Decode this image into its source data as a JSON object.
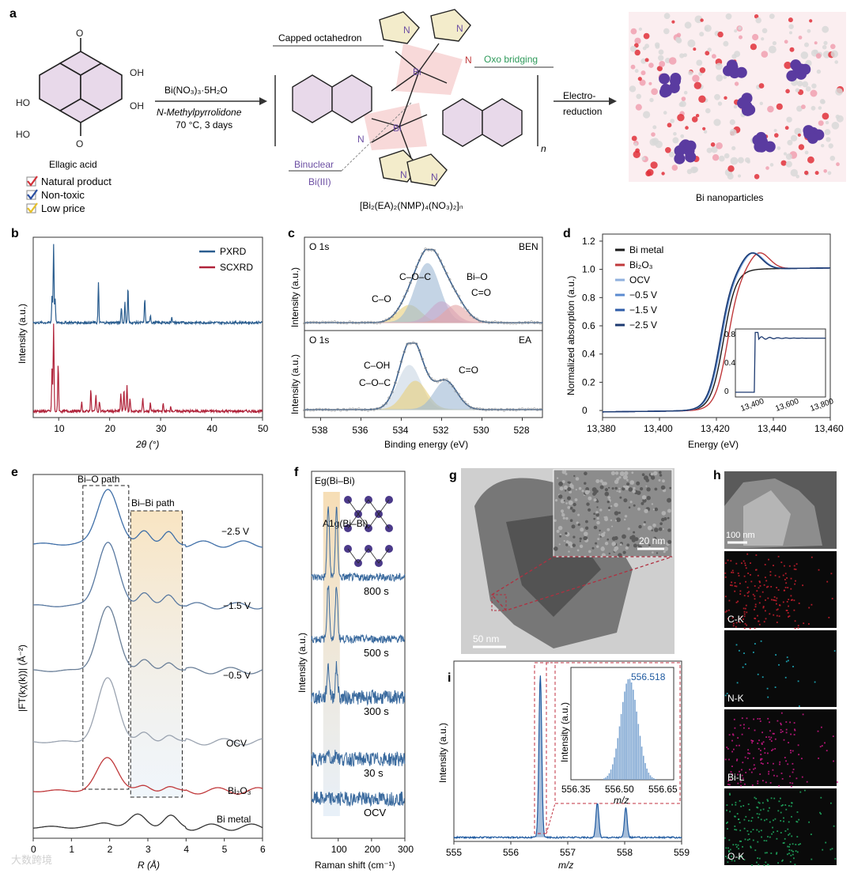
{
  "panel_labels": [
    "a",
    "b",
    "c",
    "d",
    "e",
    "f",
    "g",
    "h",
    "i"
  ],
  "panel_a": {
    "ellagic_acid": "Ellagic acid",
    "checklist": [
      "Natural product",
      "Non-toxic",
      "Low price"
    ],
    "check_colors": [
      "#d1323a",
      "#2a4fa2",
      "#e6c02a"
    ],
    "reagent": "Bi(NO₃)₃·5H₂O",
    "solvent": "N-Methylpyrrolidone",
    "conditions": "70 °C, 3 days",
    "capped_octahedron": "Capped octahedron",
    "oxo_bridging": "Oxo bridging",
    "binuclear": "Binuclear",
    "bi_iii": "Bi(III)",
    "formula": "[Bi₂(EA)₂(NMP)₄(NO₃)₂]ₙ",
    "electro_reduction": [
      "Electro-",
      "reduction"
    ],
    "bi_nanoparticles": "Bi nanoparticles"
  },
  "chart_data": [
    {
      "panel": "b",
      "type": "line",
      "xlabel": "2θ (°)",
      "ylabel": "Intensity (a.u.)",
      "xlim": [
        5,
        50
      ],
      "xticks": [
        "10",
        "20",
        "30",
        "40",
        "50"
      ],
      "series": [
        {
          "name": "PXRD",
          "color": "#2a5d8f",
          "peaks": [
            [
              8.7,
              0.35
            ],
            [
              9.0,
              1.0
            ],
            [
              9.3,
              0.3
            ],
            [
              17.8,
              0.5
            ],
            [
              22.3,
              0.2
            ],
            [
              23.0,
              0.25
            ],
            [
              23.6,
              0.45
            ],
            [
              26.9,
              0.3
            ],
            [
              28.0,
              0.1
            ],
            [
              32.2,
              0.08
            ]
          ]
        },
        {
          "name": "SCXRD",
          "color": "#b0233a",
          "peaks": [
            [
              8.7,
              0.5
            ],
            [
              9.0,
              1.0
            ],
            [
              9.9,
              0.55
            ],
            [
              14.5,
              0.1
            ],
            [
              16.3,
              0.25
            ],
            [
              17.3,
              0.2
            ],
            [
              18.0,
              0.12
            ],
            [
              22.2,
              0.2
            ],
            [
              22.8,
              0.25
            ],
            [
              23.4,
              0.3
            ],
            [
              24.0,
              0.15
            ],
            [
              26.5,
              0.15
            ],
            [
              28.0,
              0.1
            ],
            [
              30.5,
              0.08
            ],
            [
              32.0,
              0.06
            ]
          ]
        }
      ]
    },
    {
      "panel": "c",
      "type": "line",
      "xlabel": "Binding energy (eV)",
      "ylabel": "Intensity (a.u.)",
      "xlim": [
        538.8,
        527.0
      ],
      "xticks": [
        "538",
        "536",
        "534",
        "532",
        "530",
        "528"
      ],
      "subplots": [
        {
          "element": "O 1s",
          "sample": "BEN",
          "components": [
            {
              "label": "C–O–C",
              "center": 533.6,
              "height": 0.25,
              "width": 0.8,
              "color": "#e8cf7a"
            },
            {
              "label": "C–O",
              "center": 532.7,
              "height": 0.85,
              "width": 0.85,
              "color": "#9db9d4"
            },
            {
              "label": "Bi–O",
              "center": 532.0,
              "height": 0.3,
              "width": 0.8,
              "color": "#c9a8cc"
            },
            {
              "label": "C=O",
              "center": 531.3,
              "height": 0.25,
              "width": 0.8,
              "color": "#e5a5a5"
            }
          ]
        },
        {
          "element": "O 1s",
          "sample": "EA",
          "components": [
            {
              "label": "C–OH",
              "center": 533.6,
              "height": 0.7,
              "width": 0.8,
              "color": "#c9d6e3"
            },
            {
              "label": "C–O–C",
              "center": 533.3,
              "height": 0.45,
              "width": 0.8,
              "color": "#e8cf7a"
            },
            {
              "label": "C=O",
              "center": 531.8,
              "height": 0.45,
              "width": 0.8,
              "color": "#9db9d4"
            }
          ]
        }
      ]
    },
    {
      "panel": "d",
      "type": "line",
      "xlabel": "Energy (eV)",
      "ylabel": "Normalized absorption (a.u.)",
      "xlim": [
        13380,
        13460
      ],
      "ylim": [
        -0.05,
        1.25
      ],
      "xticks": [
        "13,380",
        "13,400",
        "13,420",
        "13,440",
        "13,460"
      ],
      "yticks": [
        "0",
        "0.2",
        "0.4",
        "0.6",
        "0.8",
        "1.0",
        "1.2"
      ],
      "series": [
        {
          "name": "Bi metal",
          "color": "#1a1a1a",
          "edge": 13422.5,
          "peak": 1.0
        },
        {
          "name": "Bi₂O₃",
          "color": "#c0393b",
          "edge": 13424.0,
          "peak": 1.06
        },
        {
          "name": "OCV",
          "color": "#8fb0de",
          "edge": 13421.8,
          "peak": 1.06
        },
        {
          "name": "−0.5 V",
          "color": "#5b8bd0",
          "edge": 13421.5,
          "peak": 1.06
        },
        {
          "name": "−1.5 V",
          "color": "#2f5ca8",
          "edge": 13421.4,
          "peak": 1.06
        },
        {
          "name": "−2.5 V",
          "color": "#1d3a70",
          "edge": 13421.3,
          "peak": 1.06
        }
      ],
      "inset": {
        "xticks": [
          "13,400",
          "13,600",
          "13,800"
        ],
        "yticks": [
          "0",
          "0.4",
          "0.8"
        ]
      }
    },
    {
      "panel": "e",
      "type": "line",
      "xlabel": "R (Å)",
      "ylabel": "|FT(kχ(k))| (Å⁻²)",
      "xlim": [
        0,
        6
      ],
      "xticks": [
        "0",
        "1",
        "2",
        "3",
        "4",
        "5",
        "6"
      ],
      "annotations": [
        "Bi–O path",
        "Bi–Bi path"
      ],
      "series": [
        {
          "name": "−2.5 V",
          "color": "#3f6fa8"
        },
        {
          "name": "−1.5 V",
          "color": "#5878a0"
        },
        {
          "name": "−0.5 V",
          "color": "#6a7f98"
        },
        {
          "name": "OCV",
          "color": "#9aa3b0"
        },
        {
          "name": "Bi₂O₃",
          "color": "#c0393b"
        },
        {
          "name": "Bi metal",
          "color": "#333333"
        }
      ]
    },
    {
      "panel": "f",
      "type": "line",
      "xlabel": "Raman shift (cm⁻¹)",
      "ylabel": "Intensity (a.u.)",
      "xlim": [
        20,
        300
      ],
      "xticks": [
        "100",
        "200",
        "300"
      ],
      "modes": [
        "Eg(Bi–Bi)",
        "A1g(Bi–Bi)"
      ],
      "series": [
        {
          "name": "800 s",
          "color": "#3a6a9e"
        },
        {
          "name": "500 s",
          "color": "#3a6a9e"
        },
        {
          "name": "300 s",
          "color": "#3a6a9e"
        },
        {
          "name": "30 s",
          "color": "#3a6a9e"
        },
        {
          "name": "OCV",
          "color": "#3a6a9e"
        }
      ]
    },
    {
      "panel": "i",
      "type": "bar",
      "xlabel": "m/z",
      "ylabel": "Intensity (a.u.)",
      "xlim": [
        555,
        559
      ],
      "xticks": [
        "555",
        "556",
        "557",
        "558",
        "559"
      ],
      "peaks": [
        [
          556.518,
          1.0
        ],
        [
          557.52,
          0.22
        ],
        [
          558.02,
          0.18
        ]
      ],
      "inset": {
        "label": "556.518",
        "xticks": [
          "556.35",
          "556.50",
          "556.65"
        ],
        "xlabel": "m/z",
        "ylabel": "Intensity (a.u.)"
      }
    }
  ],
  "panel_g": {
    "inset_scale": "20 nm",
    "scale": "50 nm"
  },
  "panel_h": {
    "scale": "100 nm",
    "maps": [
      "C-K",
      "N-K",
      "Bi-L",
      "O-K"
    ],
    "map_colors": [
      "#d0202f",
      "#1fb6c8",
      "#d0198a",
      "#21b063"
    ]
  },
  "watermark": "大数跨境"
}
